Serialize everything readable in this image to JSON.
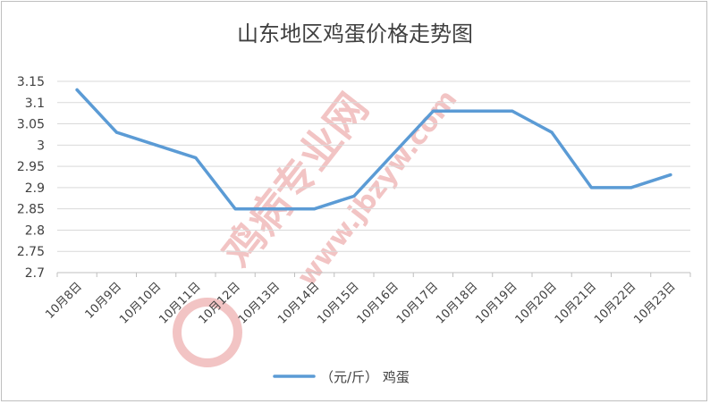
{
  "chart_data": {
    "type": "line",
    "title": "山东地区鸡蛋价格走势图",
    "categories": [
      "10月8日",
      "10月9日",
      "10月10日",
      "10月11日",
      "10月12日",
      "10月13日",
      "10月14日",
      "10月15日",
      "10月16日",
      "10月17日",
      "10月18日",
      "10月19日",
      "10月20日",
      "10月21日",
      "10月22日",
      "10月23日"
    ],
    "series": [
      {
        "name": "（元/斤） 鸡蛋",
        "color": "#5b9bd5",
        "values": [
          3.13,
          3.03,
          3.0,
          2.97,
          2.85,
          2.85,
          2.85,
          2.88,
          2.98,
          3.08,
          3.08,
          3.08,
          3.03,
          2.9,
          2.9,
          2.93
        ]
      }
    ],
    "ylim": [
      2.7,
      3.15
    ],
    "yticks": [
      "2.7",
      "2.75",
      "2.8",
      "2.85",
      "2.9",
      "2.95",
      "3",
      "3.05",
      "3.1",
      "3.15"
    ],
    "grid": true,
    "legend_position": "bottom",
    "gridline_color": "#d9d9d9"
  },
  "watermark": {
    "text_cn": "鸡病专业网",
    "text_url": "www.jbzyw.com",
    "color": "#f2c4c4"
  }
}
